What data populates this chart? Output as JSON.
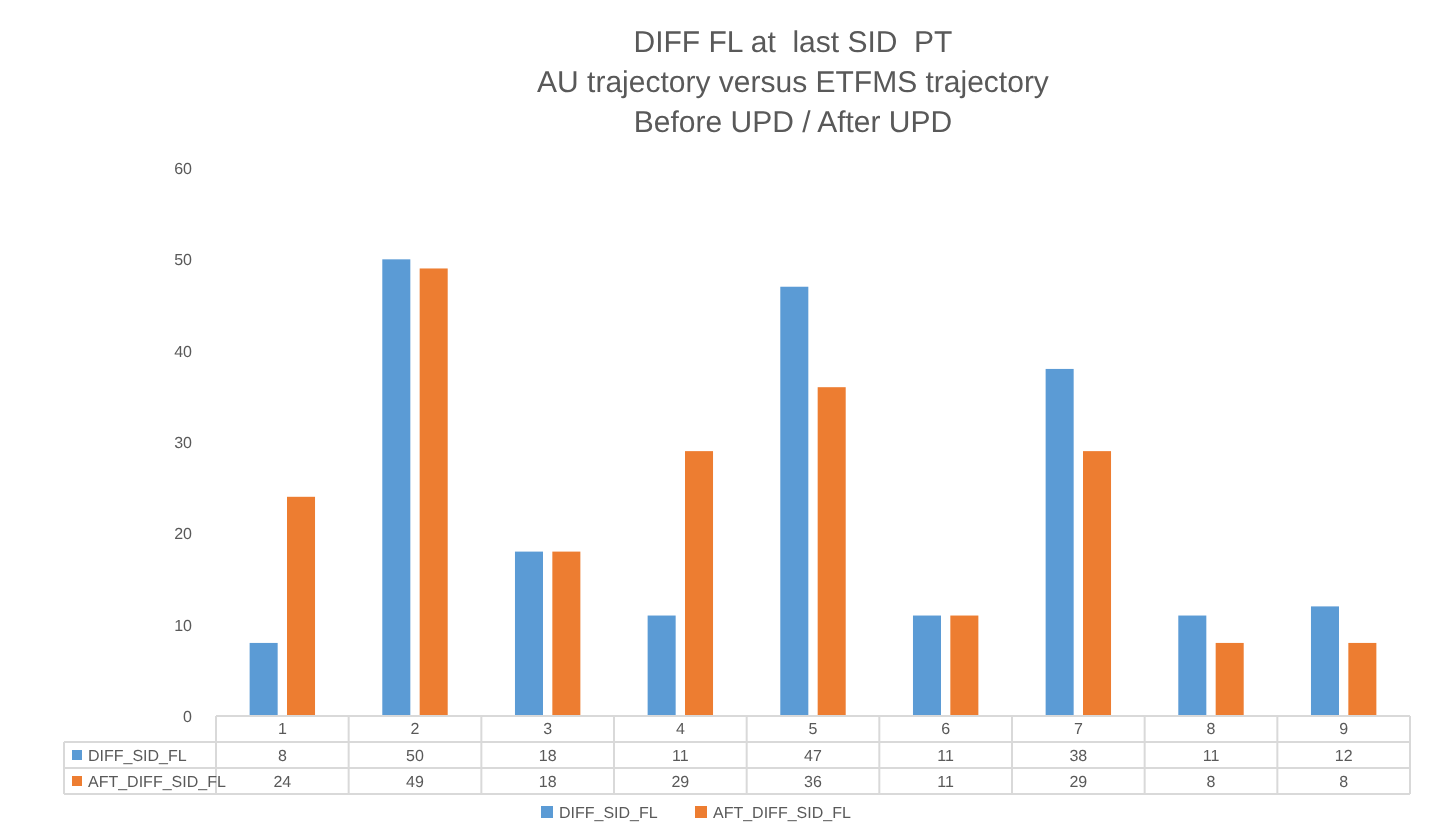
{
  "chart_data": {
    "type": "bar",
    "title": "DIFF FL at  last SID  PT\nAU trajectory versus ETFMS trajectory\nBefore UPD / After UPD",
    "categories": [
      "1",
      "2",
      "3",
      "4",
      "5",
      "6",
      "7",
      "8",
      "9"
    ],
    "series": [
      {
        "name": "DIFF_SID_FL",
        "color": "#5b9bd5",
        "values": [
          8,
          50,
          18,
          11,
          47,
          11,
          38,
          11,
          12
        ]
      },
      {
        "name": "AFT_DIFF_SID_FL",
        "color": "#ed7d31",
        "values": [
          24,
          49,
          18,
          29,
          36,
          11,
          29,
          8,
          8
        ]
      }
    ],
    "ylim": [
      0,
      60
    ],
    "yticks": [
      0,
      10,
      20,
      30,
      40,
      50,
      60
    ],
    "grid": false,
    "legend": "bottom",
    "data_labels": true
  }
}
